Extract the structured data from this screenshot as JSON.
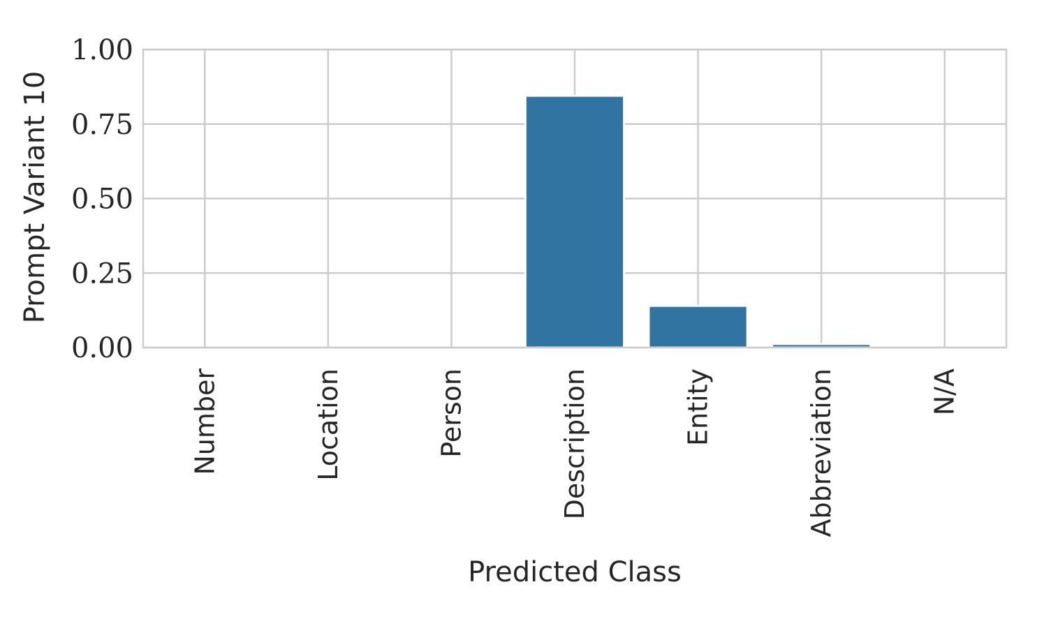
{
  "chart_data": {
    "type": "bar",
    "categories": [
      "Number",
      "Location",
      "Person",
      "Description",
      "Entity",
      "Abbreviation",
      "N/A"
    ],
    "values": [
      0.0,
      0.0,
      0.0,
      0.845,
      0.14,
      0.012,
      0.0
    ],
    "title": "",
    "xlabel": "Predicted Class",
    "ylabel": "Prompt Variant 10",
    "ylim": [
      0,
      1.0
    ],
    "yticks": [
      "0.00",
      "0.25",
      "0.50",
      "0.75",
      "1.00"
    ],
    "ytick_values": [
      0,
      0.25,
      0.5,
      0.75,
      1.0
    ],
    "grid": true,
    "bar_color": "#3274a1",
    "grid_color": "#cccccc",
    "text_color": "#262626"
  }
}
